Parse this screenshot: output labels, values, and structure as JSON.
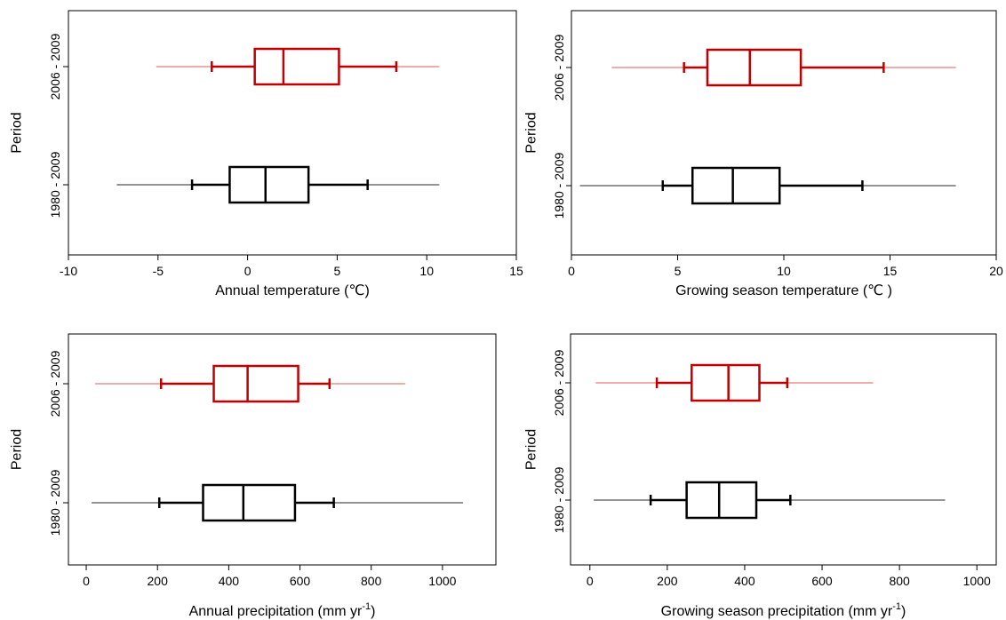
{
  "chart_data": [
    {
      "type": "boxplot",
      "xlabel": "Annual temperature (",
      "xlabel_unit": "℃",
      "xlabel_close": ")",
      "ylabel": "Period",
      "xlim": [
        -10,
        15
      ],
      "xticks": [
        "-10",
        "-5",
        "0",
        "5",
        "10",
        "15"
      ],
      "xtick_values": [
        -10,
        -5,
        0,
        5,
        10,
        15
      ],
      "categories": [
        "1980 - 2009",
        "2006 - 2009"
      ],
      "series": [
        {
          "category": "2006 - 2009",
          "color": "#c00000",
          "whisker_color": "#e87a7a",
          "min": -5.1,
          "p5": -2.0,
          "q1": 0.4,
          "median": 2.0,
          "q3": 5.1,
          "p95": 8.3,
          "max": 10.7
        },
        {
          "category": "1980 - 2009",
          "color": "#000000",
          "whisker_color": "#555555",
          "min": -7.3,
          "p5": -3.1,
          "q1": -1.0,
          "median": 1.0,
          "q3": 3.4,
          "p95": 6.7,
          "max": 10.7
        }
      ]
    },
    {
      "type": "boxplot",
      "xlabel": "Growing season temperature (",
      "xlabel_unit": "℃",
      "xlabel_close": " )",
      "ylabel": "Period",
      "xlim": [
        0,
        20
      ],
      "xticks": [
        "0",
        "5",
        "10",
        "15",
        "20"
      ],
      "xtick_values": [
        0,
        5,
        10,
        15,
        20
      ],
      "categories": [
        "1980 - 2009",
        "2006 - 2009"
      ],
      "series": [
        {
          "category": "2006 - 2009",
          "color": "#c00000",
          "whisker_color": "#e87a7a",
          "min": 1.9,
          "p5": 5.3,
          "q1": 6.4,
          "median": 8.4,
          "q3": 10.8,
          "p95": 14.7,
          "max": 18.1
        },
        {
          "category": "1980 - 2009",
          "color": "#000000",
          "whisker_color": "#555555",
          "min": 0.4,
          "p5": 4.3,
          "q1": 5.7,
          "median": 7.6,
          "q3": 9.8,
          "p95": 13.7,
          "max": 18.1
        }
      ]
    },
    {
      "type": "boxplot",
      "xlabel": "Annual precipitation (mm yr",
      "xlabel_unit": "-1",
      "xlabel_close": ")",
      "ylabel": "Period",
      "xlim": [
        -50,
        1150
      ],
      "xticks": [
        "0",
        "200",
        "400",
        "600",
        "800",
        "1000"
      ],
      "xtick_values": [
        0,
        200,
        400,
        600,
        800,
        1000
      ],
      "categories": [
        "1980 - 2009",
        "2006 - 2009"
      ],
      "series": [
        {
          "category": "2006 - 2009",
          "color": "#c00000",
          "whisker_color": "#e87a7a",
          "min": 25,
          "p5": 210,
          "q1": 358,
          "median": 453,
          "q3": 595,
          "p95": 683,
          "max": 895
        },
        {
          "category": "1980 - 2009",
          "color": "#000000",
          "whisker_color": "#555555",
          "min": 15,
          "p5": 205,
          "q1": 328,
          "median": 441,
          "q3": 586,
          "p95": 695,
          "max": 1058
        }
      ]
    },
    {
      "type": "boxplot",
      "xlabel": "Growing season precipitation (mm yr",
      "xlabel_unit": "-1",
      "xlabel_close": ")",
      "ylabel": "Period",
      "xlim": [
        -50,
        1050
      ],
      "xticks": [
        "0",
        "200",
        "400",
        "600",
        "800",
        "1000"
      ],
      "xtick_values": [
        0,
        200,
        400,
        600,
        800,
        1000
      ],
      "categories": [
        "1980 - 2009",
        "2006 - 2009"
      ],
      "series": [
        {
          "category": "2006 - 2009",
          "color": "#c00000",
          "whisker_color": "#e87a7a",
          "min": 15,
          "p5": 173,
          "q1": 263,
          "median": 358,
          "q3": 438,
          "p95": 510,
          "max": 732
        },
        {
          "category": "1980 - 2009",
          "color": "#000000",
          "whisker_color": "#555555",
          "min": 10,
          "p5": 157,
          "q1": 250,
          "median": 334,
          "q3": 430,
          "p95": 518,
          "max": 918
        }
      ]
    }
  ]
}
